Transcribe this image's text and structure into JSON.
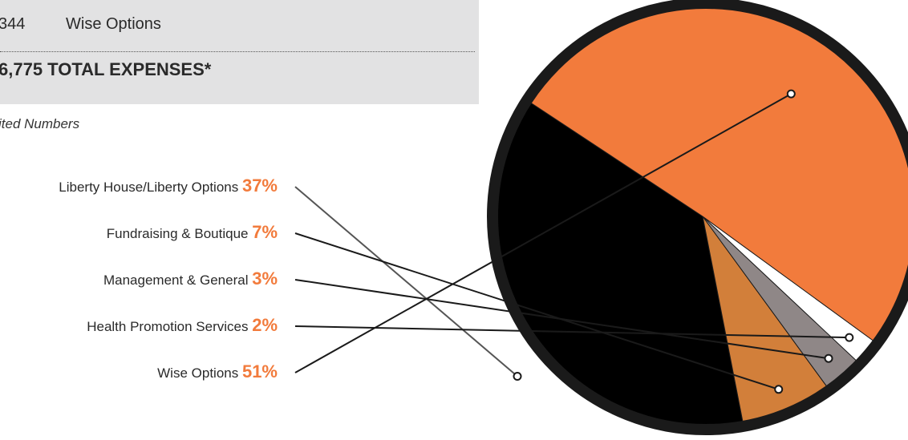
{
  "summary": {
    "row_amount": "344",
    "row_name": "Wise Options",
    "total_line": "6,775  TOTAL EXPENSES*",
    "footnote": "ited Numbers"
  },
  "colors": {
    "accent": "#f27b3c",
    "outline": "#1a1a1a"
  },
  "chart_data": {
    "type": "pie",
    "title": "",
    "slices": [
      {
        "label": "Liberty House/Liberty Options",
        "pct_label": "37%",
        "value": 37,
        "color": "#000000"
      },
      {
        "label": "Fundraising & Boutique",
        "pct_label": "7%",
        "value": 7,
        "color": "#d27f3a"
      },
      {
        "label": "Management & General",
        "pct_label": "3%",
        "value": 3,
        "color": "#8f8787"
      },
      {
        "label": "Health Promotion Services",
        "pct_label": "2%",
        "value": 2,
        "color": "#ffffff"
      },
      {
        "label": "Wise Options",
        "pct_label": "51%",
        "value": 51,
        "color": "#f27b3c"
      }
    ]
  }
}
